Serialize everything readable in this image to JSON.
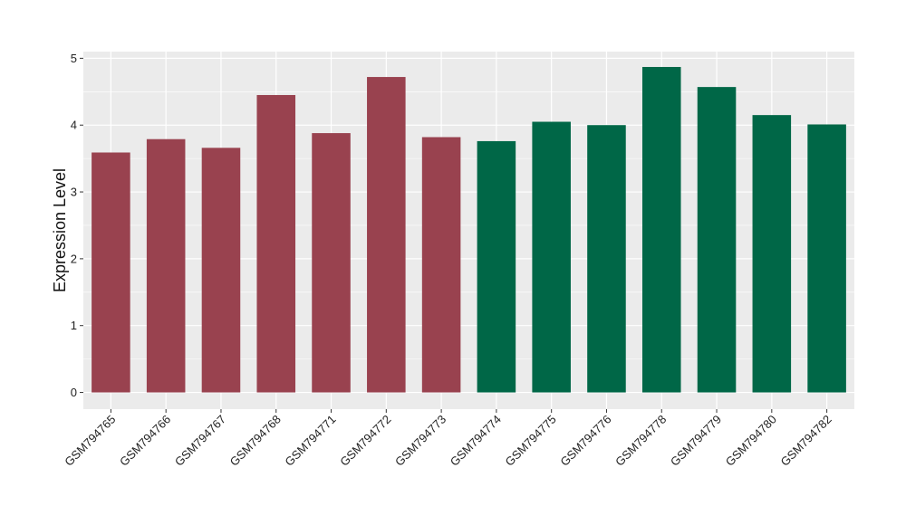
{
  "chart_data": {
    "type": "bar",
    "title": "",
    "xlabel": "",
    "ylabel": "Expression Level",
    "ylim": [
      -0.25,
      5.1
    ],
    "yticks": [
      0,
      1,
      2,
      3,
      4,
      5
    ],
    "grid": true,
    "legend": "none",
    "categories": [
      "GSM794765",
      "GSM794766",
      "GSM794767",
      "GSM794768",
      "GSM794771",
      "GSM794772",
      "GSM794773",
      "GSM794774",
      "GSM794775",
      "GSM794776",
      "GSM794778",
      "GSM794779",
      "GSM794780",
      "GSM794782"
    ],
    "values": [
      3.59,
      3.79,
      3.66,
      4.45,
      3.88,
      4.72,
      3.82,
      3.76,
      4.05,
      4.0,
      4.87,
      4.57,
      4.15,
      4.01
    ],
    "bar_colors": [
      "#99424f",
      "#99424f",
      "#99424f",
      "#99424f",
      "#99424f",
      "#99424f",
      "#99424f",
      "#006747",
      "#006747",
      "#006747",
      "#006747",
      "#006747",
      "#006747",
      "#006747"
    ],
    "panel_background": "#ebebeb",
    "gridline_color": "#ffffff"
  }
}
